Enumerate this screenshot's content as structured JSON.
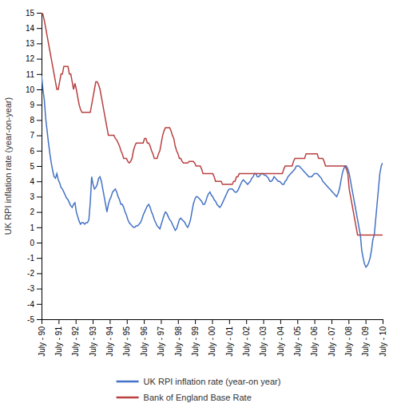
{
  "chart_data": {
    "type": "line",
    "ylabel": "UK RPI inflation rate (year-on-year)",
    "x": [
      0,
      0.081633,
      0.163265,
      0.244898,
      0.326531,
      0.408163,
      0.489796,
      0.571429,
      0.653061,
      0.734694,
      0.816327,
      0.897959,
      0.979592,
      1.061224,
      1.142857,
      1.22449,
      1.306122,
      1.387755,
      1.469388,
      1.55102,
      1.632653,
      1.714286,
      1.795918,
      1.877551,
      1.959184,
      2.040816,
      2.122449,
      2.204082,
      2.285714,
      2.367347,
      2.44898,
      2.530612,
      2.612245,
      2.693878,
      2.77551,
      2.857143,
      2.938776,
      3.020408,
      3.102041,
      3.183673,
      3.265306,
      3.346939,
      3.428571,
      3.510204,
      3.591837,
      3.673469,
      3.755102,
      3.836735,
      3.918367,
      4,
      4.081633,
      4.163265,
      4.244898,
      4.326531,
      4.408163,
      4.489796,
      4.571429,
      4.653061,
      4.734694,
      4.816327,
      4.897959,
      4.979592,
      5.061224,
      5.142857,
      5.22449,
      5.306122,
      5.387755,
      5.469388,
      5.55102,
      5.632653,
      5.714286,
      5.795918,
      5.877551,
      5.959184,
      6.040816,
      6.122449,
      6.204082,
      6.285714,
      6.367347,
      6.44898,
      6.530612,
      6.612245,
      6.693878,
      6.77551,
      6.857143,
      6.938776,
      7.020408,
      7.102041,
      7.183673,
      7.265306,
      7.346939,
      7.428571,
      7.510204,
      7.591837,
      7.673469,
      7.755102,
      7.836735,
      7.918367,
      8,
      8.081633,
      8.163265,
      8.244898,
      8.326531,
      8.408163,
      8.489796,
      8.571429,
      8.653061,
      8.734694,
      8.816327,
      8.897959,
      8.979592,
      9.061224,
      9.142857,
      9.22449,
      9.306122,
      9.387755,
      9.469388,
      9.55102,
      9.632653,
      9.714286,
      9.795918,
      9.877551,
      9.959184,
      10.040816,
      10.122449,
      10.204082,
      10.285714,
      10.367347,
      10.44898,
      10.530612,
      10.612245,
      10.693878,
      10.77551,
      10.857143,
      10.938776,
      11.020408,
      11.102041,
      11.183673,
      11.265306,
      11.346939,
      11.428571,
      11.510204,
      11.591837,
      11.673469,
      11.755102,
      11.836735,
      11.918367,
      12,
      12.081633,
      12.163265,
      12.244898,
      12.326531,
      12.408163,
      12.489796,
      12.571429,
      12.653061,
      12.734694,
      12.816327,
      12.897959,
      12.979592,
      13.061224,
      13.142857,
      13.22449,
      13.306122,
      13.387755,
      13.469388,
      13.55102,
      13.632653,
      13.714286,
      13.795918,
      13.877551,
      13.959184,
      14.040816,
      14.122449,
      14.204082,
      14.285714,
      14.367347,
      14.44898,
      14.530612,
      14.612245,
      14.693878,
      14.77551,
      14.857143,
      14.938776,
      15.020408,
      15.102041,
      15.183673,
      15.265306,
      15.346939,
      15.428571,
      15.510204,
      15.591837,
      15.673469,
      15.755102,
      15.836735,
      15.918367,
      16,
      16.081633,
      16.163265,
      16.244898,
      16.326531,
      16.408163,
      16.489796,
      16.571429,
      16.653061,
      16.734694,
      16.816327,
      16.897959,
      16.979592,
      17.061224,
      17.142857,
      17.22449,
      17.306122,
      17.387755,
      17.469388,
      17.55102,
      17.632653,
      17.714286,
      17.795918,
      17.877551,
      17.959184,
      18.040816,
      18.122449,
      18.204082,
      18.285714,
      18.367347,
      18.44898,
      18.530612,
      18.612245,
      18.693878,
      18.77551,
      18.857143,
      18.938776,
      19.020408,
      19.102041,
      19.183673,
      19.265306,
      19.346939,
      19.428571,
      19.510204,
      19.591837,
      19.673469,
      19.755102,
      19.836735,
      19.918367,
      20
    ],
    "xlim": [
      0,
      20
    ],
    "xticks": [
      {
        "value": 0,
        "label": "July - 90"
      },
      {
        "value": 1,
        "label": "July - 91"
      },
      {
        "value": 2,
        "label": "July - 92"
      },
      {
        "value": 3,
        "label": "July - 93"
      },
      {
        "value": 4,
        "label": "July - 94"
      },
      {
        "value": 5,
        "label": "July - 95"
      },
      {
        "value": 6,
        "label": "July - 96"
      },
      {
        "value": 7,
        "label": "July - 97"
      },
      {
        "value": 8,
        "label": "July - 98"
      },
      {
        "value": 9,
        "label": "July - 99"
      },
      {
        "value": 10,
        "label": "July - 00"
      },
      {
        "value": 11,
        "label": "July - 01"
      },
      {
        "value": 12,
        "label": "July - 02"
      },
      {
        "value": 13,
        "label": "July - 03"
      },
      {
        "value": 14,
        "label": "July - 04"
      },
      {
        "value": 15,
        "label": "July - 05"
      },
      {
        "value": 16,
        "label": "July - 06"
      },
      {
        "value": 17,
        "label": "July - 07"
      },
      {
        "value": 18,
        "label": "July - 08"
      },
      {
        "value": 19,
        "label": "July - 09"
      },
      {
        "value": 20,
        "label": "July - 10"
      }
    ],
    "ylim": [
      -5,
      15
    ],
    "yticks": [
      -5,
      -4,
      -3,
      -2,
      -1,
      0,
      1,
      2,
      3,
      4,
      5,
      6,
      7,
      8,
      9,
      10,
      11,
      12,
      13,
      14,
      15
    ],
    "grid": false,
    "legend": "bottom",
    "series": [
      {
        "name": "UK RPI inflation rate (year-on year)",
        "color": "#4472C4",
        "values": [
          10.9,
          10.0,
          9.3,
          8.1,
          7.3,
          6.5,
          5.8,
          5.2,
          4.7,
          4.3,
          4.2,
          4.5,
          4.1,
          3.9,
          3.6,
          3.5,
          3.3,
          3.1,
          2.9,
          2.8,
          2.6,
          2.4,
          2.3,
          2.5,
          2.6,
          2.0,
          1.7,
          1.4,
          1.2,
          1.3,
          1.3,
          1.2,
          1.3,
          1.3,
          1.5,
          2.6,
          4.3,
          3.8,
          3.5,
          3.6,
          3.8,
          4.2,
          4.3,
          4.0,
          3.5,
          3.0,
          2.5,
          2.0,
          2.5,
          2.8,
          3.0,
          3.3,
          3.4,
          3.5,
          3.3,
          3.0,
          2.8,
          2.5,
          2.5,
          2.3,
          2.0,
          1.8,
          1.5,
          1.3,
          1.2,
          1.1,
          1.0,
          1.0,
          1.1,
          1.1,
          1.2,
          1.3,
          1.5,
          1.8,
          2.0,
          2.2,
          2.4,
          2.5,
          2.3,
          2.0,
          1.8,
          1.5,
          1.3,
          1.1,
          1.0,
          0.9,
          1.2,
          1.5,
          1.8,
          2.0,
          1.9,
          1.7,
          1.5,
          1.4,
          1.2,
          1.0,
          0.8,
          0.9,
          1.2,
          1.5,
          1.6,
          1.5,
          1.4,
          1.3,
          1.1,
          1.0,
          1.2,
          1.5,
          2.0,
          2.5,
          2.8,
          3.0,
          3.0,
          2.9,
          2.8,
          2.7,
          2.5,
          2.5,
          2.7,
          3.0,
          3.2,
          3.3,
          3.1,
          3.0,
          2.8,
          2.7,
          2.5,
          2.4,
          2.3,
          2.4,
          2.6,
          2.8,
          3.0,
          3.2,
          3.4,
          3.5,
          3.5,
          3.5,
          3.4,
          3.3,
          3.3,
          3.4,
          3.6,
          3.8,
          4.0,
          4.1,
          4.0,
          3.9,
          3.8,
          3.9,
          4.0,
          4.2,
          4.3,
          4.5,
          4.5,
          4.3,
          4.3,
          4.4,
          4.5,
          4.5,
          4.4,
          4.4,
          4.3,
          4.2,
          4.0,
          4.0,
          4.1,
          4.3,
          4.2,
          4.1,
          4.0,
          4.0,
          3.9,
          3.8,
          3.8,
          4.0,
          4.1,
          4.3,
          4.4,
          4.5,
          4.6,
          4.7,
          4.8,
          5.0,
          5.0,
          5.0,
          4.9,
          4.8,
          4.7,
          4.6,
          4.5,
          4.4,
          4.3,
          4.3,
          4.3,
          4.4,
          4.5,
          4.5,
          4.5,
          4.4,
          4.3,
          4.2,
          4.0,
          3.9,
          3.8,
          3.7,
          3.6,
          3.5,
          3.4,
          3.3,
          3.2,
          3.1,
          3.0,
          3.2,
          3.5,
          4.0,
          4.5,
          4.8,
          5.0,
          5.0,
          4.8,
          4.5,
          4.0,
          3.5,
          3.0,
          2.5,
          2.0,
          1.5,
          1.0,
          0.5,
          -0.5,
          -1.0,
          -1.4,
          -1.6,
          -1.5,
          -1.3,
          -1.0,
          -0.5,
          0.2,
          0.5,
          1.5,
          2.5,
          3.5,
          4.5,
          5.0,
          5.2
        ]
      },
      {
        "name": "Bank of England Base Rate",
        "color": "#B94040",
        "values": [
          15.0,
          14.9,
          14.5,
          14.0,
          13.5,
          13.0,
          12.5,
          12.0,
          11.5,
          11.0,
          10.5,
          10.0,
          10.0,
          10.5,
          11.0,
          11.0,
          11.5,
          11.5,
          11.5,
          11.5,
          11.0,
          11.0,
          10.5,
          10.0,
          10.4,
          10.0,
          9.5,
          9.0,
          8.7,
          8.5,
          8.5,
          8.5,
          8.5,
          8.5,
          8.5,
          8.5,
          9.0,
          9.5,
          10.0,
          10.5,
          10.5,
          10.3,
          10.0,
          9.5,
          9.0,
          8.5,
          8.0,
          7.5,
          7.0,
          7.0,
          7.0,
          7.0,
          7.0,
          6.8,
          6.7,
          6.5,
          6.3,
          6.0,
          5.8,
          5.5,
          5.5,
          5.5,
          5.3,
          5.2,
          5.3,
          5.5,
          6.0,
          6.3,
          6.5,
          6.5,
          6.5,
          6.5,
          6.5,
          6.5,
          6.8,
          6.8,
          6.5,
          6.5,
          6.3,
          6.0,
          5.8,
          5.5,
          5.5,
          5.5,
          5.8,
          6.0,
          6.5,
          7.0,
          7.3,
          7.5,
          7.5,
          7.5,
          7.5,
          7.3,
          7.0,
          6.8,
          6.3,
          6.0,
          5.8,
          5.5,
          5.5,
          5.3,
          5.2,
          5.2,
          5.2,
          5.2,
          5.3,
          5.3,
          5.3,
          5.3,
          5.2,
          5.0,
          5.0,
          5.0,
          5.0,
          4.8,
          4.5,
          4.5,
          4.5,
          4.5,
          4.5,
          4.5,
          4.5,
          4.5,
          4.3,
          4.0,
          4.0,
          4.0,
          4.0,
          4.0,
          3.8,
          3.8,
          3.8,
          3.8,
          3.8,
          3.8,
          3.8,
          3.8,
          4.0,
          4.0,
          4.3,
          4.3,
          4.5,
          4.5,
          4.5,
          4.5,
          4.5,
          4.5,
          4.5,
          4.5,
          4.5,
          4.5,
          4.5,
          4.5,
          4.5,
          4.5,
          4.5,
          4.5,
          4.5,
          4.5,
          4.5,
          4.5,
          4.5,
          4.5,
          4.5,
          4.5,
          4.5,
          4.5,
          4.5,
          4.5,
          4.5,
          4.5,
          4.5,
          4.5,
          4.8,
          5.0,
          5.0,
          5.0,
          5.0,
          5.0,
          5.0,
          5.3,
          5.5,
          5.5,
          5.5,
          5.5,
          5.5,
          5.5,
          5.5,
          5.5,
          5.8,
          5.8,
          5.8,
          5.8,
          5.8,
          5.8,
          5.8,
          5.8,
          5.8,
          5.5,
          5.5,
          5.5,
          5.5,
          5.3,
          5.0,
          5.0,
          5.0,
          5.0,
          5.0,
          5.0,
          5.0,
          5.0,
          5.0,
          5.0,
          5.0,
          5.0,
          5.0,
          5.0,
          5.0,
          4.8,
          4.5,
          3.5,
          3.0,
          2.5,
          2.0,
          1.5,
          1.0,
          0.5,
          0.5,
          0.5,
          0.5,
          0.5,
          0.5,
          0.5,
          0.5,
          0.5,
          0.5,
          0.5,
          0.5,
          0.5,
          0.5,
          0.5,
          0.5,
          0.5,
          0.5,
          0.5
        ]
      }
    ]
  }
}
